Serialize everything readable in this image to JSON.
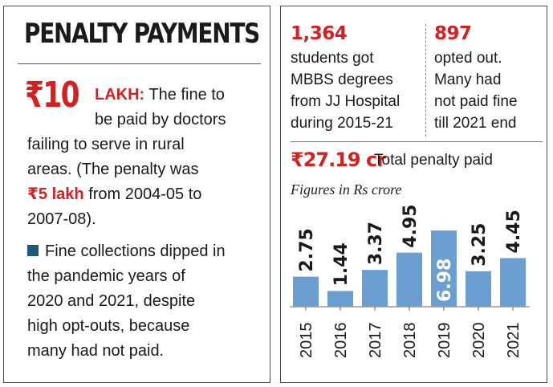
{
  "left": {
    "title": "PENALTY PAYMENTS",
    "fine_amount": "₹10",
    "fine_unit": "LAKH:",
    "fine_text_1": "The fine to",
    "fine_text_2": "be paid by doctors",
    "fine_text_3": "failing to serve in rural",
    "fine_text_4": "areas. (The penalty was",
    "old_fine_amount": "₹5 lakh",
    "fine_text_5": "from 2004-05 to",
    "fine_text_6": "2007-08).",
    "note_lines": [
      "Fine collections dipped in",
      "the pandemic years of",
      "2020 and 2021, despite",
      "high opt-outs, because",
      "many had not paid."
    ]
  },
  "right": {
    "graduates_count": "1,364",
    "graduates_lines": [
      "students got",
      "MBBS degrees",
      "from JJ Hospital",
      "during 2015-21"
    ],
    "optout_count": "897",
    "optout_lines": [
      "opted out.",
      "Many had",
      "not paid fine",
      "till 2021 end"
    ],
    "total_penalty": "₹27.19 cr",
    "total_penalty_label": "Total penalty paid",
    "units_note": "Figures in Rs crore"
  },
  "colors": {
    "bar": "#6b9fd1",
    "accent_red": "#d4201e",
    "note_square": "#1d5a82"
  },
  "chart_data": {
    "type": "bar",
    "categories": [
      "2015",
      "2016",
      "2017",
      "2018",
      "2019",
      "2020",
      "2021"
    ],
    "values": [
      2.75,
      1.44,
      3.37,
      4.95,
      6.98,
      3.25,
      4.45
    ],
    "value_labels": [
      "2.75",
      "1.44",
      "3.37",
      "4.95",
      "6.98",
      "3.25",
      "4.45"
    ],
    "title": "",
    "xlabel": "",
    "ylabel": "",
    "grid": false,
    "legend": "none"
  }
}
